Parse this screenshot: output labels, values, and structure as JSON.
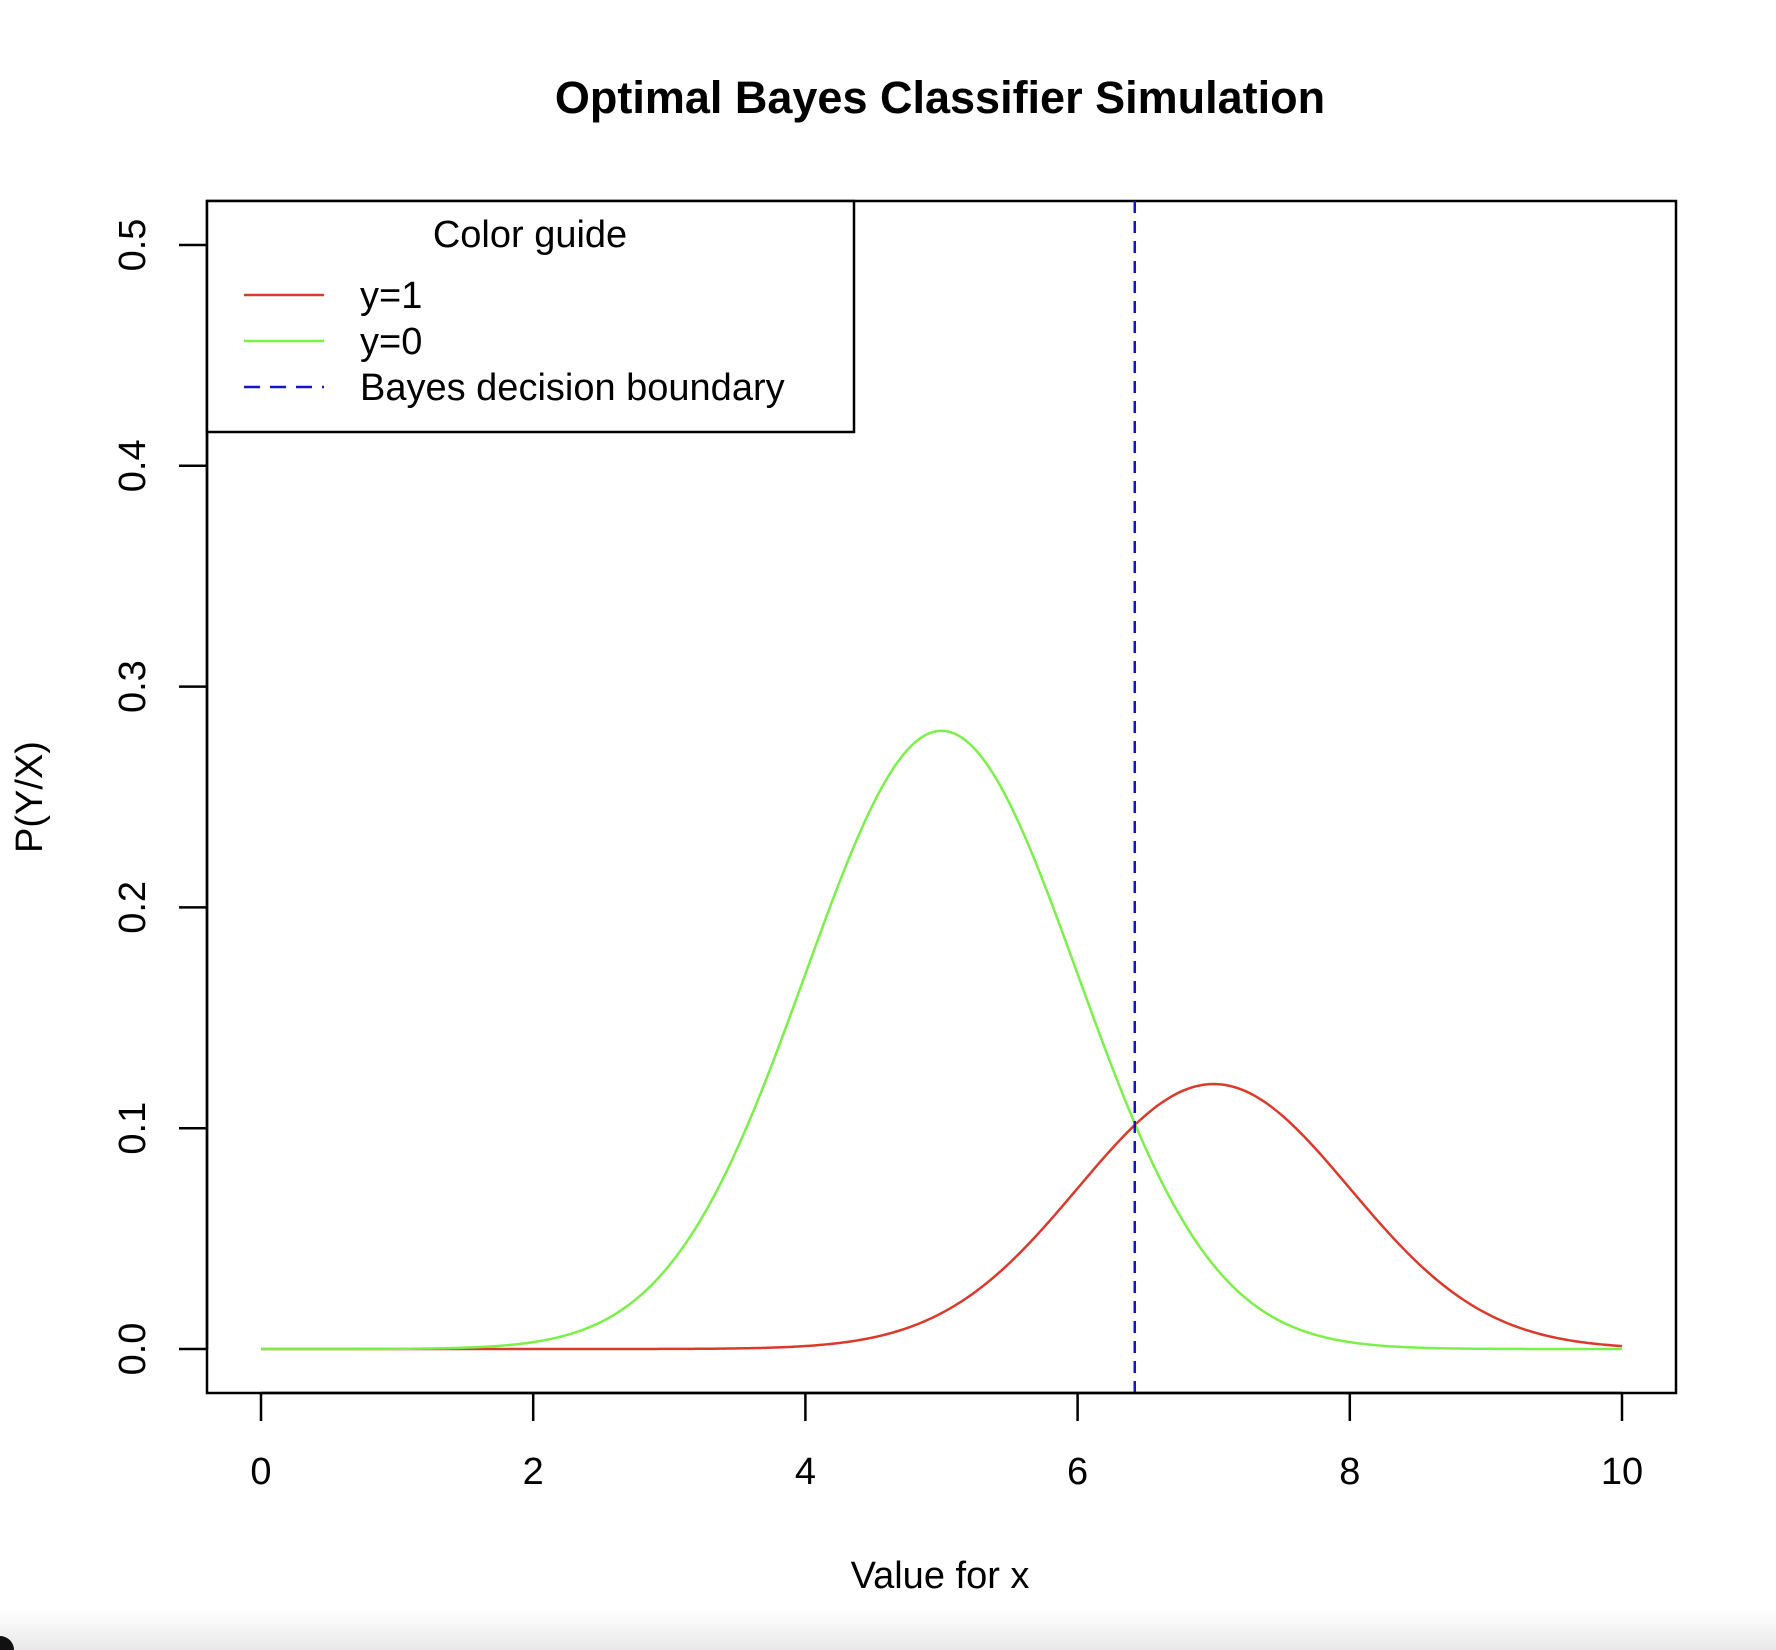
{
  "chart_data": {
    "type": "line",
    "title": "Optimal Bayes Classifier Simulation",
    "xlabel": "Value for x",
    "ylabel": "P(Y/X)",
    "xlim": [
      0,
      10
    ],
    "ylim": [
      0,
      0.5
    ],
    "xticks": [
      0,
      2,
      4,
      6,
      8,
      10
    ],
    "xtick_labels": [
      "0",
      "2",
      "4",
      "6",
      "8",
      "10"
    ],
    "yticks": [
      0.0,
      0.1,
      0.2,
      0.3,
      0.4,
      0.5
    ],
    "ytick_labels": [
      "0.0",
      "0.1",
      "0.2",
      "0.3",
      "0.4",
      "0.5"
    ],
    "grid": false,
    "series": [
      {
        "name": "y=1",
        "color": "#d93a2b",
        "distribution": "normal",
        "mean": 7,
        "sd": 1,
        "peak": 0.12
      },
      {
        "name": "y=0",
        "color": "#7cf04a",
        "distribution": "normal",
        "mean": 5,
        "sd": 1,
        "peak": 0.28
      }
    ],
    "decision_boundary": {
      "name": "Bayes decision boundary",
      "x": 6.42,
      "color": "#1414c8",
      "style": "dashed"
    },
    "legend": {
      "title": "Color guide",
      "placement": "top-left",
      "entries": [
        {
          "label": "y=1",
          "color": "#d93a2b",
          "style": "solid"
        },
        {
          "label": "y=0",
          "color": "#7cf04a",
          "style": "solid"
        },
        {
          "label": "Bayes decision boundary",
          "color": "#1414c8",
          "style": "dashed"
        }
      ]
    }
  }
}
